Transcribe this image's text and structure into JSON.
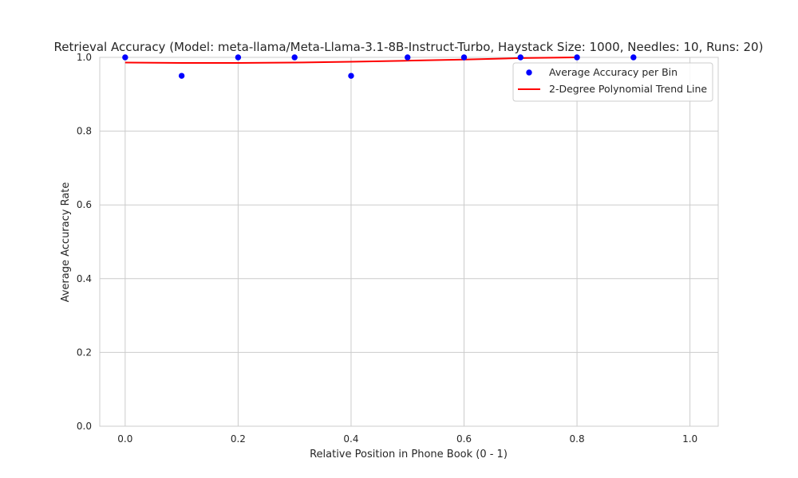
{
  "chart_data": {
    "type": "scatter",
    "title": "Retrieval Accuracy (Model: meta-llama/Meta-Llama-3.1-8B-Instruct-Turbo, Haystack Size: 1000, Needles: 10, Runs: 20)",
    "xlabel": "Relative Position in Phone Book (0 - 1)",
    "ylabel": "Average Accuracy Rate",
    "xlim": [
      -0.045,
      1.05
    ],
    "ylim": [
      0,
      1
    ],
    "x_ticks": [
      "0.0",
      "0.2",
      "0.4",
      "0.6",
      "0.8",
      "1.0"
    ],
    "y_ticks": [
      "0.0",
      "0.2",
      "0.4",
      "0.6",
      "0.8",
      "1.0"
    ],
    "x_tick_values": [
      0,
      0.2,
      0.4,
      0.6,
      0.8,
      1.0
    ],
    "y_tick_values": [
      0,
      0.2,
      0.4,
      0.6,
      0.8,
      1.0
    ],
    "grid": true,
    "legend_position": "top-right",
    "series": [
      {
        "name": "Average Accuracy per Bin",
        "kind": "scatter",
        "color": "#0000ff",
        "x": [
          0.0,
          0.1,
          0.2,
          0.3,
          0.4,
          0.5,
          0.6,
          0.7,
          0.8,
          0.9
        ],
        "y": [
          1.0,
          0.95,
          1.0,
          1.0,
          0.95,
          1.0,
          1.0,
          1.0,
          1.0,
          1.0
        ]
      },
      {
        "name": "2-Degree Polynomial Trend Line",
        "kind": "line",
        "color": "#ff0000",
        "x": [
          0.0,
          0.1,
          0.2,
          0.3,
          0.4,
          0.5,
          0.6,
          0.7,
          0.8
        ],
        "y": [
          0.986,
          0.985,
          0.985,
          0.986,
          0.988,
          0.991,
          0.994,
          0.998,
          1.0
        ]
      }
    ]
  }
}
